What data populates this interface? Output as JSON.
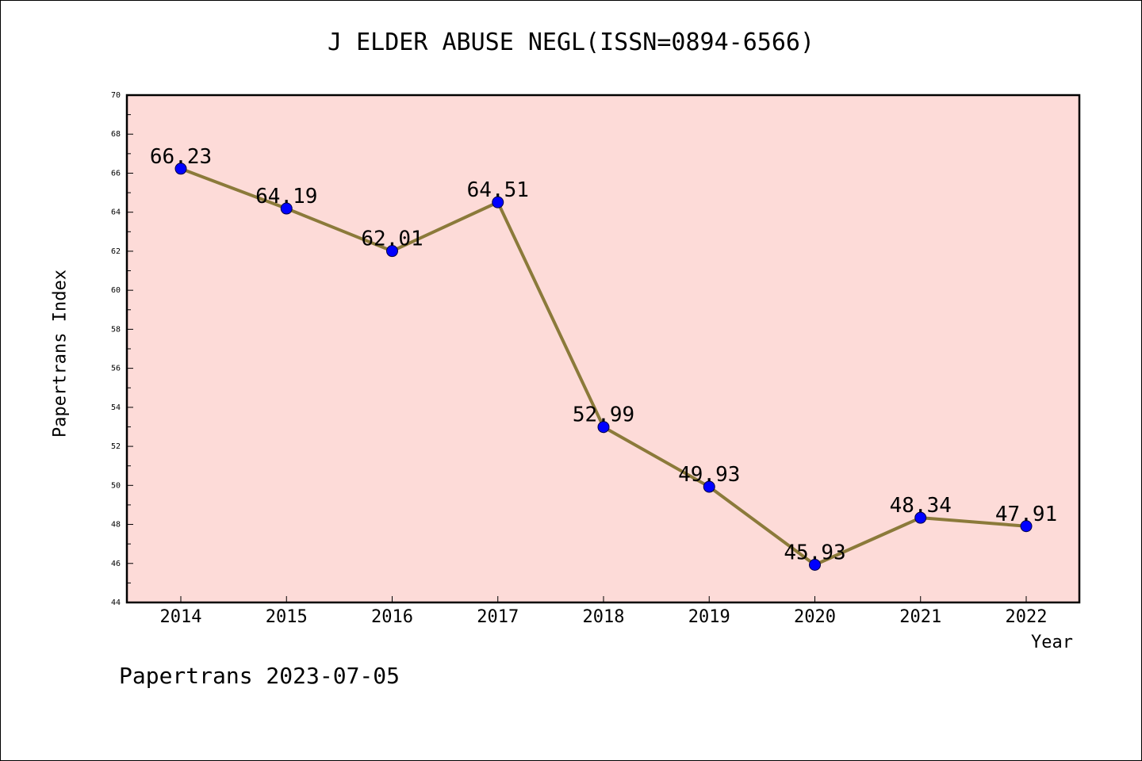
{
  "chart_data": {
    "type": "line",
    "title": "J ELDER ABUSE NEGL(ISSN=0894-6566)",
    "xlabel": "Year",
    "ylabel": "Papertrans Index",
    "categories": [
      "2014",
      "2015",
      "2016",
      "2017",
      "2018",
      "2019",
      "2020",
      "2021",
      "2022"
    ],
    "series": [
      {
        "values": [
          66.23,
          64.19,
          62.01,
          64.51,
          52.99,
          49.93,
          45.93,
          48.34,
          47.91
        ],
        "labels": [
          "66.23",
          "64.19",
          "62.01",
          "64.51",
          "52.99",
          "49.93",
          "45.93",
          "48.34",
          "47.91"
        ]
      }
    ],
    "ylim": [
      44,
      70
    ],
    "yticks": [
      "44",
      "46",
      "48",
      "50",
      "52",
      "54",
      "56",
      "58",
      "60",
      "62",
      "64",
      "66",
      "68",
      "70"
    ],
    "grid": false,
    "colors": {
      "plot_background": "#fddbd8",
      "line": "#8b7a3a",
      "marker": "#0000ff"
    }
  },
  "footer": "Papertrans 2023-07-05"
}
